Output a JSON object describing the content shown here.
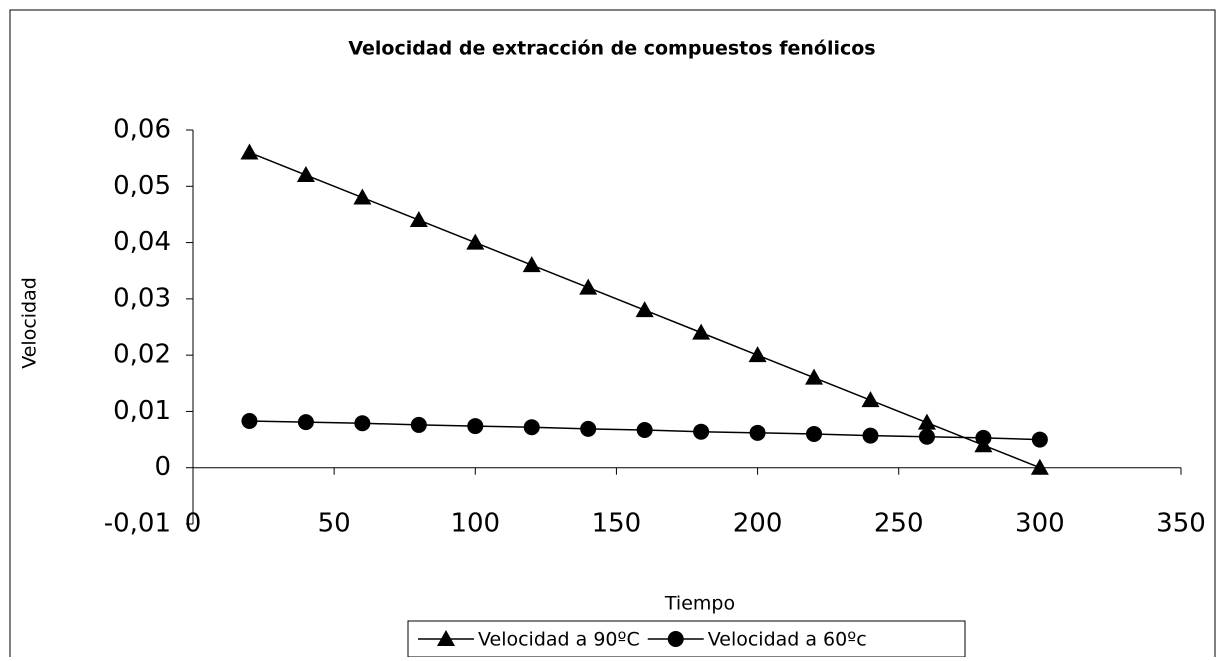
{
  "chart_data": {
    "type": "line",
    "title": "Velocidad de extracción de compuestos fenólicos",
    "xlabel": "Tiempo",
    "ylabel": "Velocidad",
    "x": [
      20,
      40,
      60,
      80,
      100,
      120,
      140,
      160,
      180,
      200,
      220,
      240,
      260,
      280,
      300
    ],
    "series": [
      {
        "name": "Velocidad a 90ºC",
        "color": "#000000",
        "marker": "triangle",
        "values": [
          0.056,
          0.052,
          0.048,
          0.044,
          0.04,
          0.036,
          0.032,
          0.028,
          0.024,
          0.02,
          0.016,
          0.012,
          0.008,
          0.004,
          0.0
        ]
      },
      {
        "name": "Velocidad a 60ºc",
        "color": "#000000",
        "marker": "circle",
        "values": [
          0.0083,
          0.0081,
          0.0079,
          0.0076,
          0.0074,
          0.0072,
          0.0069,
          0.0067,
          0.0064,
          0.0062,
          0.006,
          0.0057,
          0.0055,
          0.0053,
          0.005
        ]
      }
    ],
    "xlim": [
      0,
      350
    ],
    "xticks": [
      0,
      50,
      100,
      150,
      200,
      250,
      300,
      350
    ],
    "ylim": [
      -0.01,
      0.06
    ],
    "yticks": [
      {
        "value": -0.01,
        "label": "-0,01"
      },
      0,
      {
        "value": 0.01,
        "label": "0,01"
      },
      {
        "value": 0.02,
        "label": "0,02"
      },
      {
        "value": 0.03,
        "label": "0,03"
      },
      {
        "value": 0.04,
        "label": "0,04"
      },
      {
        "value": 0.05,
        "label": "0,05"
      },
      {
        "value": 0.06,
        "label": "0,06"
      }
    ],
    "grid": false,
    "legend": "bottom"
  }
}
